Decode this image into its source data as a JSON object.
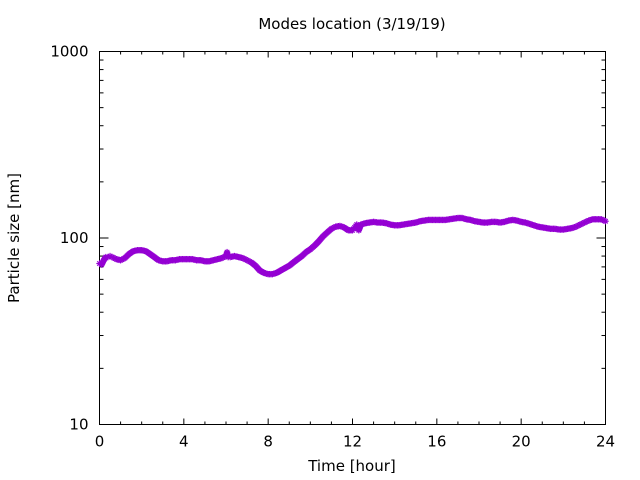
{
  "chart_data": {
    "type": "scatter",
    "title": "Modes location (3/19/19)",
    "xlabel": "Time [hour]",
    "ylabel": "Particle size [nm]",
    "xlim": [
      0,
      24
    ],
    "ylim": [
      10,
      1000
    ],
    "y_scale": "log",
    "grid": false,
    "legend": "none",
    "x_ticks": [
      0,
      4,
      8,
      12,
      16,
      20,
      24
    ],
    "x_tick_labels": [
      "0",
      "4",
      "8",
      "12",
      "16",
      "20",
      "24"
    ],
    "y_ticks": [
      10,
      100,
      1000
    ],
    "y_tick_labels": [
      "10",
      "100",
      "1000"
    ],
    "marker": "star",
    "color": "#9400D3",
    "series": [
      {
        "x": [
          0.0,
          0.1,
          0.2,
          0.3,
          0.4,
          0.5,
          0.6,
          0.8,
          1.0,
          1.2,
          1.4,
          1.6,
          1.8,
          2.0,
          2.2,
          2.4,
          2.6,
          2.8,
          3.0,
          3.2,
          3.4,
          3.6,
          3.8,
          4.0,
          4.2,
          4.4,
          4.6,
          4.8,
          5.0,
          5.2,
          5.4,
          5.6,
          5.8,
          6.0,
          6.05,
          6.1,
          6.2,
          6.4,
          6.6,
          6.8,
          7.0,
          7.2,
          7.4,
          7.6,
          7.8,
          8.0,
          8.2,
          8.4,
          8.6,
          8.8,
          9.0,
          9.2,
          9.4,
          9.6,
          9.8,
          10.0,
          10.2,
          10.4,
          10.6,
          10.8,
          11.0,
          11.2,
          11.4,
          11.6,
          11.8,
          12.0,
          12.1,
          12.2,
          12.3,
          12.4,
          12.6,
          12.8,
          13.0,
          13.2,
          13.4,
          13.6,
          13.8,
          14.0,
          14.2,
          14.4,
          14.6,
          14.8,
          15.0,
          15.2,
          15.4,
          15.6,
          15.8,
          16.0,
          16.2,
          16.4,
          16.6,
          16.8,
          17.0,
          17.2,
          17.4,
          17.6,
          17.8,
          18.0,
          18.2,
          18.4,
          18.6,
          18.8,
          19.0,
          19.2,
          19.4,
          19.6,
          19.8,
          20.0,
          20.2,
          20.4,
          20.6,
          20.8,
          21.0,
          21.2,
          21.4,
          21.6,
          21.8,
          22.0,
          22.2,
          22.4,
          22.6,
          22.8,
          23.0,
          23.2,
          23.4,
          23.6,
          23.8,
          24.0
        ],
        "y": [
          73,
          72,
          76,
          79,
          79,
          80,
          79,
          77,
          76,
          78,
          82,
          85,
          86,
          86,
          85,
          82,
          79,
          76,
          75,
          75,
          76,
          76,
          77,
          77,
          77,
          77,
          76,
          76,
          75,
          75,
          76,
          77,
          78,
          80,
          84,
          79,
          79,
          80,
          79,
          78,
          76,
          74,
          71,
          67,
          65,
          64,
          64,
          65,
          67,
          69,
          71,
          74,
          77,
          80,
          84,
          87,
          91,
          96,
          102,
          107,
          112,
          115,
          116,
          114,
          110,
          110,
          114,
          118,
          110,
          118,
          120,
          121,
          122,
          121,
          121,
          120,
          118,
          117,
          117,
          118,
          119,
          120,
          121,
          123,
          124,
          125,
          125,
          125,
          125,
          125,
          126,
          127,
          128,
          128,
          126,
          125,
          123,
          122,
          121,
          121,
          122,
          122,
          121,
          122,
          124,
          125,
          124,
          122,
          121,
          119,
          117,
          115,
          114,
          113,
          112,
          112,
          111,
          111,
          112,
          113,
          115,
          118,
          121,
          124,
          126,
          126,
          126,
          123
        ]
      }
    ]
  }
}
